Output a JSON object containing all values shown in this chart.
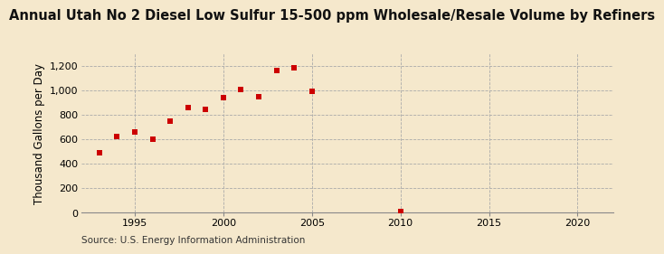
{
  "title": "Annual Utah No 2 Diesel Low Sulfur 15-500 ppm Wholesale/Resale Volume by Refiners",
  "ylabel": "Thousand Gallons per Day",
  "source": "Source: U.S. Energy Information Administration",
  "background_color": "#f5e8cc",
  "data_color": "#cc0000",
  "x": [
    1993,
    1994,
    1995,
    1996,
    1997,
    1998,
    1999,
    2000,
    2001,
    2002,
    2003,
    2004,
    2005,
    2010
  ],
  "y": [
    490,
    620,
    660,
    600,
    750,
    860,
    845,
    940,
    1010,
    950,
    1165,
    1185,
    990,
    10
  ],
  "xlim": [
    1992,
    2022
  ],
  "ylim": [
    0,
    1300
  ],
  "yticks": [
    0,
    200,
    400,
    600,
    800,
    1000,
    1200
  ],
  "ytick_labels": [
    "0",
    "200",
    "400",
    "600",
    "800",
    "1,000",
    "1,200"
  ],
  "xticks": [
    1995,
    2000,
    2005,
    2010,
    2015,
    2020
  ],
  "title_fontsize": 10.5,
  "label_fontsize": 8.5,
  "tick_fontsize": 8,
  "source_fontsize": 7.5
}
